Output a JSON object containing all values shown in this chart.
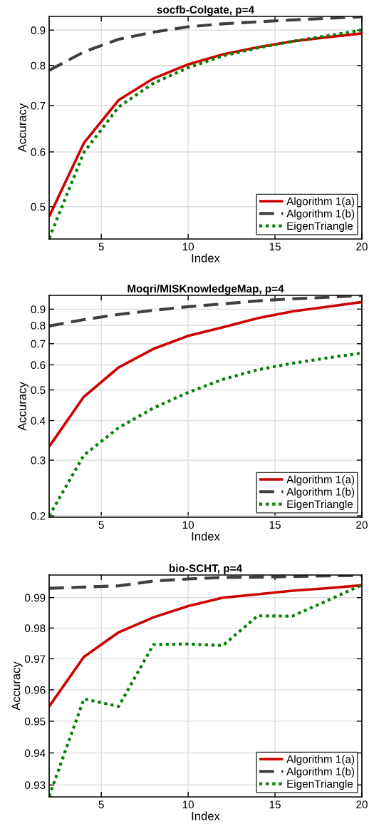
{
  "chart_data": [
    {
      "type": "line",
      "title": "socfb-Colgate, p=4",
      "xlabel": "Index",
      "ylabel": "Accuracy",
      "log": "y",
      "grid": true,
      "legend": "bottom right",
      "x": [
        2,
        4,
        6,
        8,
        10,
        12,
        14,
        16,
        18,
        20
      ],
      "xlim": [
        2,
        20
      ],
      "xticks": [
        5,
        10,
        15,
        20
      ],
      "ylim": [
        0.449,
        0.942
      ],
      "yticks": [
        0.5,
        0.6,
        0.7,
        0.8,
        0.9
      ],
      "series": [
        {
          "name": "Algorithm 1(a)",
          "color": "#cc0000",
          "line_style": "solid",
          "values": [
            0.484,
            0.618,
            0.713,
            0.766,
            0.803,
            0.83,
            0.85,
            0.867,
            0.879,
            0.89
          ]
        },
        {
          "name": "Algorithm 1(b)",
          "color": "#404040",
          "line_style": "dashed",
          "values": [
            0.787,
            0.837,
            0.873,
            0.894,
            0.91,
            0.919,
            0.925,
            0.931,
            0.936,
            0.941
          ]
        },
        {
          "name": "EigenTriangle",
          "color": "#008000",
          "line_style": "dotted",
          "values": [
            0.45,
            0.599,
            0.697,
            0.754,
            0.794,
            0.826,
            0.848,
            0.867,
            0.883,
            0.9
          ]
        }
      ]
    },
    {
      "type": "line",
      "title": "Moqri/MISKnowledgeMap, p=4",
      "xlabel": "Index",
      "ylabel": "Accuracy",
      "log": "y",
      "grid": true,
      "legend": "bottom right",
      "x": [
        2,
        4,
        6,
        8,
        10,
        12,
        14,
        16,
        18,
        20
      ],
      "xlim": [
        2,
        20
      ],
      "xticks": [
        5,
        10,
        15,
        20
      ],
      "ylim": [
        0.198,
        0.995
      ],
      "yticks": [
        0.2,
        0.3,
        0.4,
        0.5,
        0.6,
        0.7,
        0.8,
        0.9
      ],
      "series": [
        {
          "name": "Algorithm 1(a)",
          "color": "#cc0000",
          "line_style": "solid",
          "values": [
            0.331,
            0.476,
            0.589,
            0.674,
            0.741,
            0.789,
            0.843,
            0.885,
            0.916,
            0.948
          ]
        },
        {
          "name": "Algorithm 1(b)",
          "color": "#404040",
          "line_style": "dashed",
          "values": [
            0.796,
            0.834,
            0.866,
            0.892,
            0.916,
            0.935,
            0.956,
            0.97,
            0.981,
            0.994
          ]
        },
        {
          "name": "EigenTriangle",
          "color": "#008000",
          "line_style": "dotted",
          "values": [
            0.2,
            0.311,
            0.38,
            0.438,
            0.491,
            0.54,
            0.579,
            0.607,
            0.631,
            0.654
          ]
        }
      ]
    },
    {
      "type": "line",
      "title": "bio-SCHT, p=4",
      "xlabel": "Index",
      "ylabel": "Accuracy",
      "log": "y",
      "grid": true,
      "legend": "bottom right",
      "x": [
        2,
        4,
        6,
        8,
        10,
        12,
        14,
        16,
        18,
        20
      ],
      "xlim": [
        2,
        20
      ],
      "xticks": [
        5,
        10,
        15,
        20
      ],
      "ylim": [
        0.9263,
        0.9975
      ],
      "yticks": [
        0.93,
        0.94,
        0.95,
        0.96,
        0.97,
        0.98,
        0.99
      ],
      "series": [
        {
          "name": "Algorithm 1(a)",
          "color": "#cc0000",
          "line_style": "solid",
          "values": [
            0.9547,
            0.9706,
            0.9786,
            0.9835,
            0.9872,
            0.99,
            0.9911,
            0.9923,
            0.9931,
            0.9941
          ]
        },
        {
          "name": "Algorithm 1(b)",
          "color": "#404040",
          "line_style": "dashed",
          "values": [
            0.9931,
            0.9935,
            0.9939,
            0.9955,
            0.9962,
            0.9967,
            0.9968,
            0.997,
            0.9972,
            0.9974
          ]
        },
        {
          "name": "EigenTriangle",
          "color": "#008000",
          "line_style": "dotted",
          "values": [
            0.9265,
            0.9571,
            0.9547,
            0.9746,
            0.9748,
            0.9743,
            0.984,
            0.9839,
            0.989,
            0.9942
          ]
        }
      ]
    }
  ]
}
